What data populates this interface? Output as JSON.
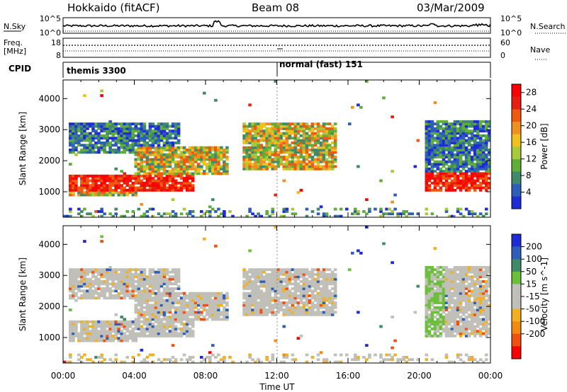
{
  "header": {
    "station": "Hokkaido (fitACF)",
    "beam": "Beam 08",
    "date": "03/Mar/2009"
  },
  "noise_panel": {
    "left_label": "N.Sky",
    "right_label": "N.Search",
    "left_ticks": [
      "10^5",
      "10^0"
    ],
    "right_ticks": [
      "10^5",
      "10^0"
    ]
  },
  "freq_panel": {
    "left_label_1": "Freq.",
    "left_label_2": "[MHz]",
    "right_label": "Nave",
    "left_ticks": [
      "18",
      "8"
    ],
    "right_ticks": [
      "60",
      "0"
    ]
  },
  "cpid_panel": {
    "label": "CPID",
    "segments": [
      "themis 3300",
      "normal (fast) 151"
    ]
  },
  "colors": {
    "power_scale": [
      "#1f2bd6",
      "#2d5fb8",
      "#3f8a6a",
      "#5fae3c",
      "#a8c93a",
      "#f0c020",
      "#f09020",
      "#f05a10",
      "#e81f10",
      "#ff0000"
    ],
    "velocity_scale": [
      "#1f2bd6",
      "#2d5fb8",
      "#3f8a6a",
      "#6bbf3a",
      "#c0c0b8",
      "#c0c0b8",
      "#f0b020",
      "#f08a10",
      "#f05010",
      "#ff0000"
    ]
  },
  "chart_data": [
    {
      "type": "heatmap",
      "name": "power",
      "ylabel": "Slant Range [km]",
      "yticks": [
        1000,
        2000,
        3000,
        4000
      ],
      "ylim": [
        180,
        4600
      ],
      "xlim": [
        0,
        24
      ],
      "colorbar": {
        "label": "Power [dB]",
        "ticks": [
          "4",
          "8",
          "12",
          "16",
          "20",
          "24",
          "28"
        ],
        "range": [
          0,
          30
        ]
      },
      "echo_regions": [
        {
          "t0": 0.3,
          "t1": 7.2,
          "r0": 1000,
          "r1": 1500,
          "level": "high"
        },
        {
          "t0": 0.3,
          "t1": 4.0,
          "r0": 800,
          "r1": 1000,
          "level": "mid"
        },
        {
          "t0": 4.0,
          "t1": 9.2,
          "r0": 1500,
          "r1": 2400,
          "level": "mid"
        },
        {
          "t0": 0.3,
          "t1": 6.5,
          "r0": 2200,
          "r1": 3200,
          "level": "low"
        },
        {
          "t0": 10.0,
          "t1": 15.3,
          "r0": 1700,
          "r1": 3200,
          "level": "mid"
        },
        {
          "t0": 20.3,
          "t1": 23.9,
          "r0": 1000,
          "r1": 1600,
          "level": "high"
        },
        {
          "t0": 20.3,
          "t1": 23.9,
          "r0": 1600,
          "r1": 3300,
          "level": "low"
        }
      ]
    },
    {
      "type": "heatmap",
      "name": "velocity",
      "ylabel": "Slant Range [km]",
      "yticks": [
        1000,
        2000,
        3000,
        4000
      ],
      "ylim": [
        180,
        4600
      ],
      "xlim": [
        0,
        24
      ],
      "xticks": [
        "00:00",
        "04:00",
        "08:00",
        "12:00",
        "16:00",
        "20:00",
        "00:00"
      ],
      "xlabel": "Time UT",
      "colorbar": {
        "label": "Velocity [m s^-1]",
        "ticks": [
          "200",
          "100",
          "50",
          "15",
          "-15",
          "-50",
          "-100",
          "-200"
        ],
        "range": [
          -250,
          250
        ]
      }
    }
  ]
}
